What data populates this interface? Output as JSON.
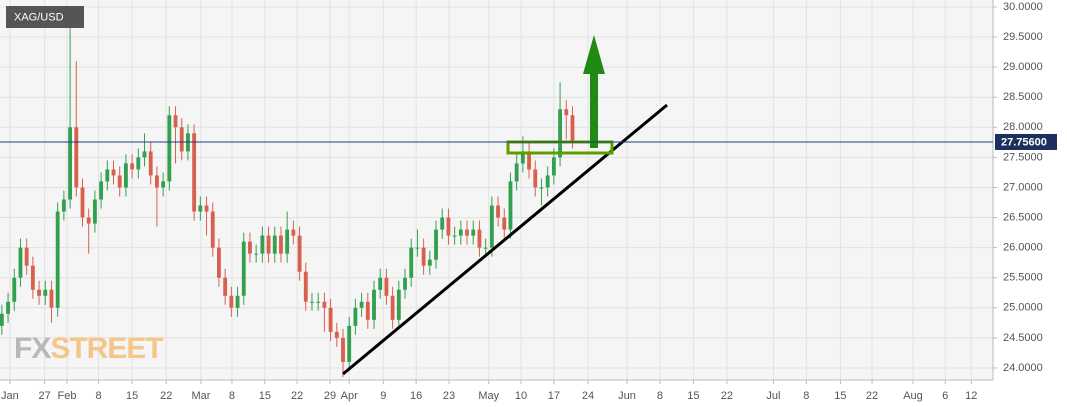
{
  "chart_data": {
    "type": "candlestick",
    "symbol": "XAG/USD",
    "watermark": [
      "FX",
      "STREET"
    ],
    "up_color": "#33a04f",
    "down_color": "#d9604f",
    "grid": true,
    "open": [
      24.7,
      24.9,
      25.1,
      25.5,
      26.0,
      25.7,
      25.3,
      25.2,
      25.3,
      25.0,
      26.6,
      26.8,
      28.0,
      27.0,
      26.5,
      26.4,
      26.8,
      27.1,
      27.3,
      27.2,
      27.0,
      27.4,
      27.3,
      27.5,
      27.6,
      27.2,
      27.0,
      27.1,
      28.2,
      28.0,
      27.6,
      27.9,
      26.6,
      26.7,
      26.6,
      26.0,
      25.5,
      25.2,
      25.0,
      25.2,
      26.1,
      25.9,
      25.9,
      26.2,
      25.9,
      26.2,
      25.9,
      26.3,
      26.2,
      25.6,
      25.1,
      25.1,
      25.1,
      25.0,
      24.6,
      24.5,
      24.1,
      24.7,
      25.0,
      25.1,
      24.8,
      25.3,
      25.5,
      25.2,
      24.8,
      25.3,
      25.5,
      26.0,
      26.0,
      25.7,
      25.8,
      26.3,
      26.5,
      26.2,
      26.2,
      26.3,
      26.2,
      26.3,
      26.0,
      26.0,
      26.7,
      26.5,
      26.3,
      27.1,
      27.4,
      27.6,
      27.3,
      27.0,
      27.0,
      27.2,
      27.5,
      28.3,
      28.2
    ],
    "high": [
      25.05,
      25.25,
      25.65,
      26.15,
      26.15,
      25.85,
      25.45,
      25.45,
      25.45,
      26.75,
      26.95,
      30.0,
      29.1,
      27.15,
      26.65,
      26.95,
      27.25,
      27.45,
      27.45,
      27.35,
      27.55,
      27.55,
      27.65,
      27.9,
      27.75,
      27.35,
      27.25,
      28.35,
      28.35,
      28.15,
      28.05,
      28.05,
      26.85,
      26.85,
      26.75,
      26.15,
      25.65,
      25.35,
      25.35,
      26.25,
      26.25,
      26.05,
      26.35,
      26.35,
      26.35,
      26.35,
      26.6,
      26.45,
      26.35,
      25.75,
      25.25,
      25.25,
      25.25,
      25.15,
      24.75,
      24.65,
      24.85,
      25.15,
      25.25,
      25.25,
      25.45,
      25.65,
      25.65,
      25.35,
      25.45,
      25.65,
      26.15,
      26.3,
      26.15,
      25.95,
      26.45,
      26.65,
      26.65,
      26.35,
      26.45,
      26.45,
      26.45,
      26.45,
      26.15,
      26.85,
      26.85,
      26.65,
      27.25,
      27.55,
      27.85,
      27.75,
      27.45,
      27.15,
      27.35,
      27.65,
      28.75,
      28.45,
      28.35
    ],
    "low": [
      24.55,
      24.75,
      24.95,
      25.35,
      25.55,
      25.15,
      25.05,
      25.05,
      24.75,
      24.85,
      26.45,
      26.65,
      26.85,
      26.35,
      25.9,
      26.25,
      26.65,
      26.95,
      27.05,
      26.85,
      26.85,
      27.15,
      27.15,
      27.35,
      27.05,
      26.35,
      26.85,
      26.95,
      27.4,
      27.45,
      27.45,
      26.45,
      26.45,
      26.2,
      25.85,
      25.35,
      25.05,
      24.85,
      24.85,
      25.05,
      25.75,
      25.75,
      25.75,
      25.75,
      25.75,
      25.75,
      25.75,
      26.05,
      25.45,
      24.95,
      24.95,
      24.95,
      24.6,
      24.45,
      24.35,
      23.85,
      23.95,
      24.55,
      24.85,
      24.65,
      24.65,
      25.15,
      25.05,
      24.65,
      24.65,
      25.15,
      25.35,
      25.85,
      25.55,
      25.55,
      25.65,
      26.15,
      26.05,
      26.05,
      26.05,
      26.05,
      26.05,
      25.85,
      25.85,
      25.85,
      26.35,
      26.15,
      26.15,
      26.95,
      27.25,
      27.15,
      26.85,
      26.7,
      26.85,
      27.05,
      27.35,
      27.8,
      27.65
    ],
    "close": [
      24.9,
      25.1,
      25.5,
      26.0,
      25.7,
      25.3,
      25.2,
      25.3,
      25.0,
      26.6,
      26.8,
      28.0,
      27.0,
      26.5,
      26.4,
      26.8,
      27.1,
      27.3,
      27.2,
      27.0,
      27.4,
      27.3,
      27.5,
      27.6,
      27.2,
      27.0,
      27.1,
      28.2,
      28.0,
      27.6,
      27.9,
      26.6,
      26.7,
      26.6,
      26.0,
      25.5,
      25.2,
      25.0,
      25.2,
      26.1,
      25.9,
      25.9,
      26.2,
      25.9,
      26.2,
      25.9,
      26.3,
      26.2,
      25.6,
      25.1,
      25.1,
      25.1,
      25.0,
      24.6,
      24.5,
      24.1,
      24.7,
      25.0,
      25.1,
      24.8,
      25.3,
      25.5,
      25.2,
      24.8,
      25.3,
      25.5,
      26.0,
      26.0,
      25.7,
      25.8,
      26.3,
      26.5,
      26.2,
      26.2,
      26.3,
      26.2,
      26.3,
      26.0,
      26.0,
      26.7,
      26.5,
      26.3,
      27.1,
      27.4,
      27.6,
      27.3,
      27.0,
      27.0,
      27.2,
      27.5,
      28.3,
      28.2,
      27.76
    ],
    "last_price": {
      "value": 27.756,
      "label": "27.75600"
    },
    "xlim": [
      -0.3,
      159.8
    ],
    "xticks": [
      {
        "value": 1.3,
        "label": "Jan"
      },
      {
        "value": 6.9,
        "label": "27"
      },
      {
        "value": 10.5,
        "label": "Feb"
      },
      {
        "value": 15.6,
        "label": "8"
      },
      {
        "value": 21.0,
        "label": "15"
      },
      {
        "value": 26.5,
        "label": "22"
      },
      {
        "value": 32.1,
        "label": "Mar"
      },
      {
        "value": 37.1,
        "label": "8"
      },
      {
        "value": 42.4,
        "label": "15"
      },
      {
        "value": 47.6,
        "label": "22"
      },
      {
        "value": 52.9,
        "label": "29"
      },
      {
        "value": 56.0,
        "label": "Apr"
      },
      {
        "value": 61.5,
        "label": "9"
      },
      {
        "value": 66.8,
        "label": "16"
      },
      {
        "value": 72.1,
        "label": "23"
      },
      {
        "value": 78.5,
        "label": "May"
      },
      {
        "value": 83.7,
        "label": "10"
      },
      {
        "value": 89.0,
        "label": "17"
      },
      {
        "value": 94.5,
        "label": "24"
      },
      {
        "value": 100.8,
        "label": "Jun"
      },
      {
        "value": 106.1,
        "label": "8"
      },
      {
        "value": 111.5,
        "label": "15"
      },
      {
        "value": 116.9,
        "label": "22"
      },
      {
        "value": 124.4,
        "label": "Jul"
      },
      {
        "value": 129.7,
        "label": "8"
      },
      {
        "value": 135.2,
        "label": "15"
      },
      {
        "value": 140.3,
        "label": "22"
      },
      {
        "value": 146.9,
        "label": "Aug"
      },
      {
        "value": 152.1,
        "label": "6"
      },
      {
        "value": 156.3,
        "label": "12"
      }
    ],
    "ylim": [
      23.8,
      30.116
    ],
    "yticks": [
      {
        "value": 24.0,
        "label": "24.0000"
      },
      {
        "value": 24.5,
        "label": "24.5000"
      },
      {
        "value": 25.0,
        "label": "25.0000"
      },
      {
        "value": 25.5,
        "label": "25.5000"
      },
      {
        "value": 26.0,
        "label": "26.0000"
      },
      {
        "value": 26.5,
        "label": "26.5000"
      },
      {
        "value": 27.0,
        "label": "27.0000"
      },
      {
        "value": 27.5,
        "label": "27.5000"
      },
      {
        "value": 28.0,
        "label": "28.0000"
      },
      {
        "value": 28.5,
        "label": "28.5000"
      },
      {
        "value": 29.0,
        "label": "29.0000"
      },
      {
        "value": 29.5,
        "label": "29.5000"
      },
      {
        "value": 30.0,
        "label": "30.0000"
      }
    ]
  }
}
